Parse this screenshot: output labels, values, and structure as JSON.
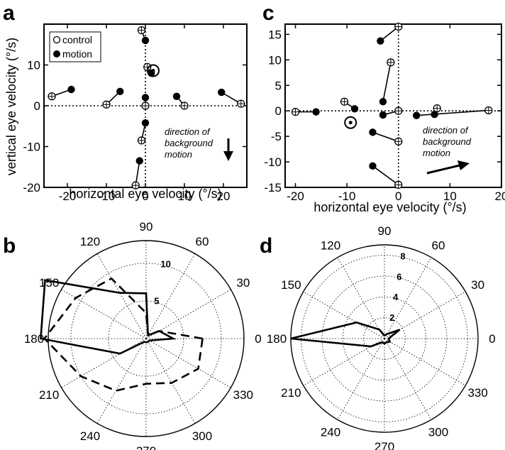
{
  "panels": {
    "a": {
      "letter": "a",
      "annotation": [
        "direction of",
        "background",
        "motion"
      ]
    },
    "b": {
      "letter": "b"
    },
    "c": {
      "letter": "c",
      "annotation": [
        "direction of",
        "background",
        "motion"
      ]
    },
    "d": {
      "letter": "d"
    }
  },
  "chart_data": [
    {
      "id": "a",
      "type": "scatter",
      "xlabel": "horizontal eye velocity (°/s)",
      "ylabel": "vertical eye velocity (°/s)",
      "xlim": [
        -26,
        26
      ],
      "ylim": [
        -20,
        20
      ],
      "xticks": [
        -20,
        -10,
        0,
        10,
        20
      ],
      "yticks": [
        -20,
        -10,
        0,
        10
      ],
      "legend": {
        "position": "top-left",
        "entries": [
          "control",
          "motion"
        ]
      },
      "background_motion_direction": "down",
      "series": [
        {
          "name": "control",
          "marker": "open-circle-cross",
          "points": [
            [
              -24,
              2.3
            ],
            [
              -10,
              0.3
            ],
            [
              0,
              0
            ],
            [
              10,
              0
            ],
            [
              24.5,
              0.5
            ],
            [
              -1,
              18.5
            ],
            [
              0.5,
              9.5
            ],
            [
              -1,
              -8.5
            ],
            [
              -2.5,
              -19.5
            ]
          ]
        },
        {
          "name": "motion",
          "marker": "filled-circle",
          "points": [
            [
              -19,
              4
            ],
            [
              -6.5,
              3.5
            ],
            [
              0,
              2
            ],
            [
              8,
              2.3
            ],
            [
              19.5,
              3.3
            ],
            [
              0,
              16
            ],
            [
              1.5,
              8
            ],
            [
              0,
              -4.2
            ],
            [
              -1.5,
              -13.5
            ]
          ]
        }
      ],
      "pairs": [
        [
          0,
          0
        ],
        [
          1,
          1
        ],
        [
          2,
          2
        ],
        [
          3,
          3
        ],
        [
          4,
          4
        ],
        [
          5,
          5
        ],
        [
          6,
          6
        ],
        [
          7,
          7
        ],
        [
          8,
          8
        ]
      ],
      "special_point": {
        "x": 2,
        "y": 8.6
      }
    },
    {
      "id": "c",
      "type": "scatter",
      "xlabel": "horizontal eye velocity (°/s)",
      "ylabel": "",
      "xlim": [
        -22,
        20
      ],
      "ylim": [
        -15,
        17
      ],
      "xticks": [
        -20,
        -10,
        0,
        10,
        20
      ],
      "yticks": [
        -15,
        -10,
        -5,
        0,
        5,
        10,
        15
      ],
      "background_motion_direction": "right",
      "series": [
        {
          "name": "control",
          "marker": "open-circle-cross",
          "points": [
            [
              -20,
              -0.2
            ],
            [
              -10.5,
              1.8
            ],
            [
              0,
              0
            ],
            [
              0,
              16.5
            ],
            [
              -1.5,
              9.5
            ],
            [
              0,
              -6
            ],
            [
              0,
              -14.5
            ],
            [
              7.5,
              0.5
            ],
            [
              17.5,
              0.1
            ]
          ]
        },
        {
          "name": "motion",
          "marker": "filled-circle",
          "points": [
            [
              -16,
              -0.2
            ],
            [
              -8.5,
              0.4
            ],
            [
              -3,
              -0.8
            ],
            [
              -3.5,
              13.7
            ],
            [
              -3,
              1.8
            ],
            [
              -5,
              -4.2
            ],
            [
              -5,
              -10.8
            ],
            [
              7,
              -0.7
            ],
            [
              3.5,
              -0.9
            ]
          ]
        }
      ],
      "pairs": [
        [
          0,
          0
        ],
        [
          1,
          1
        ],
        [
          2,
          2
        ],
        [
          3,
          3
        ],
        [
          4,
          4
        ],
        [
          5,
          5
        ],
        [
          6,
          6
        ],
        [
          7,
          7
        ],
        [
          8,
          8
        ]
      ],
      "special_point": {
        "x": -9.3,
        "y": -2.3
      }
    },
    {
      "id": "b",
      "type": "polar",
      "angle_ticks": [
        0,
        30,
        60,
        90,
        120,
        150,
        180,
        210,
        240,
        270,
        300,
        330
      ],
      "rmax": 13,
      "rings": [
        5,
        10
      ],
      "ring_labels": [
        "5",
        "10"
      ],
      "series": [
        {
          "name": "solid",
          "style": "solid",
          "r": [
            3.6,
            2.0,
            0.5,
            6.0,
            7.0,
            15.5,
            14.0,
            4.0,
            0.5,
            0.5,
            0.5,
            0.5
          ]
        },
        {
          "name": "dashed",
          "style": "dashed",
          "r": [
            7.5,
            2.0,
            0.5,
            3.4,
            9.2,
            10.8,
            13.5,
            10.0,
            8.0,
            6.0,
            6.8,
            8.0
          ]
        }
      ]
    },
    {
      "id": "d",
      "type": "polar",
      "angle_ticks": [
        0,
        30,
        60,
        90,
        120,
        150,
        180,
        210,
        240,
        270,
        300,
        330
      ],
      "rmax": 9,
      "rings": [
        2,
        4,
        6,
        8
      ],
      "ring_labels": [
        "2",
        "4",
        "6",
        "8"
      ],
      "series": [
        {
          "name": "solid",
          "style": "solid",
          "r": [
            0.4,
            1.7,
            0.5,
            0.3,
            1.0,
            3.1,
            9.0,
            1.5,
            0.4,
            0.5,
            0.4,
            0.6
          ]
        }
      ]
    }
  ]
}
